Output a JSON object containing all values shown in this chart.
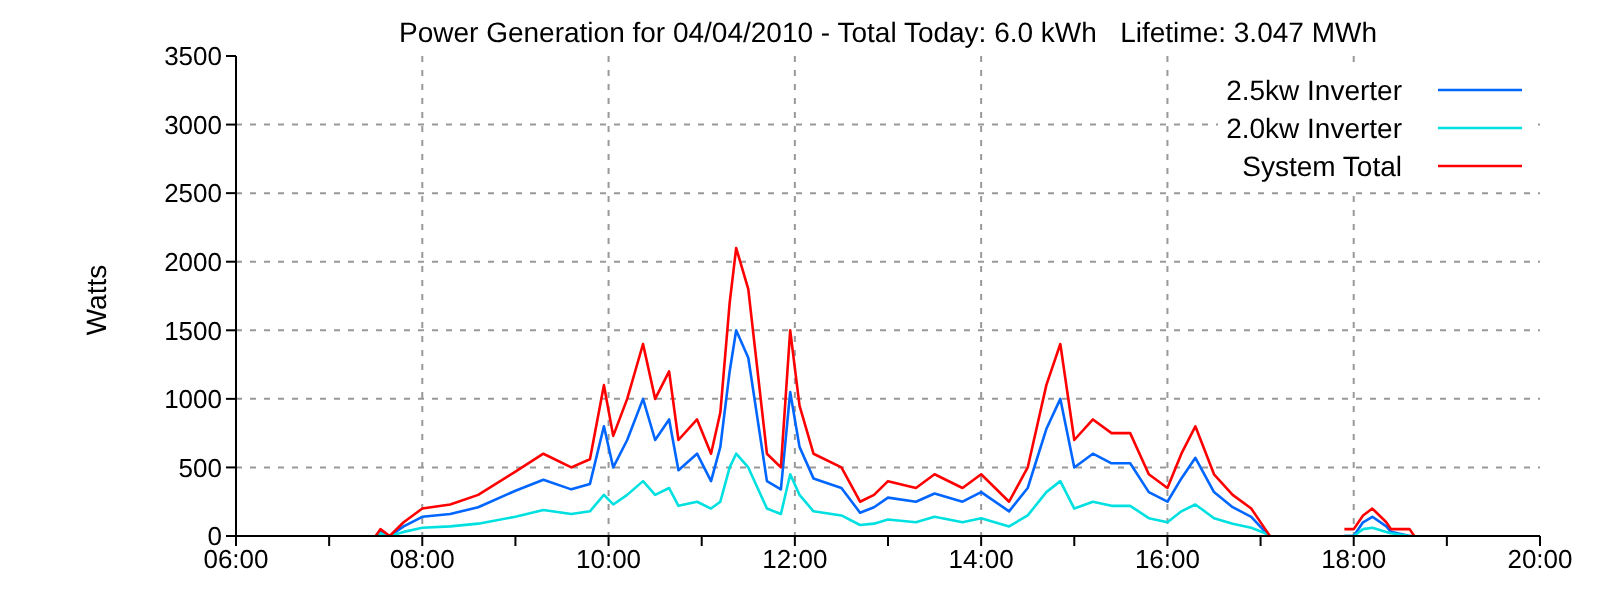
{
  "chart_data": {
    "type": "line",
    "title": "Power Generation for 04/04/2010 - Total Today: 6.0 kWh   Lifetime: 3.047 MWh",
    "ylabel": "Watts",
    "x": [
      7.5,
      7.55,
      7.65,
      7.8,
      8.0,
      8.3,
      8.6,
      9.0,
      9.3,
      9.6,
      9.8,
      9.95,
      10.05,
      10.2,
      10.37,
      10.5,
      10.65,
      10.75,
      10.95,
      11.1,
      11.2,
      11.3,
      11.37,
      11.5,
      11.6,
      11.7,
      11.85,
      11.95,
      12.05,
      12.2,
      12.5,
      12.7,
      12.85,
      13.0,
      13.3,
      13.5,
      13.8,
      14.0,
      14.3,
      14.5,
      14.7,
      14.85,
      15.0,
      15.2,
      15.4,
      15.6,
      15.8,
      16.0,
      16.15,
      16.3,
      16.5,
      16.7,
      16.9,
      17.05,
      17.1,
      17.5,
      17.9,
      18.0,
      18.1,
      18.2,
      18.35,
      18.4,
      18.6,
      18.65
    ],
    "series": [
      {
        "name": "2.5kw Inverter",
        "color": "#0066ff",
        "values": [
          0,
          30,
          0,
          70,
          140,
          160,
          210,
          330,
          410,
          340,
          380,
          800,
          500,
          700,
          1000,
          700,
          850,
          480,
          600,
          400,
          650,
          1200,
          1500,
          1300,
          850,
          400,
          340,
          1050,
          650,
          420,
          350,
          170,
          210,
          280,
          250,
          310,
          250,
          320,
          180,
          350,
          780,
          1000,
          500,
          600,
          530,
          530,
          320,
          250,
          420,
          570,
          320,
          210,
          140,
          30,
          0,
          null,
          0,
          0,
          100,
          140,
          70,
          30,
          0,
          0
        ]
      },
      {
        "name": "2.0kw Inverter",
        "color": "#00e0e0",
        "values": [
          0,
          20,
          0,
          30,
          60,
          70,
          90,
          140,
          190,
          160,
          180,
          300,
          230,
          300,
          400,
          300,
          350,
          220,
          250,
          200,
          250,
          500,
          600,
          500,
          350,
          200,
          160,
          450,
          300,
          180,
          150,
          80,
          90,
          120,
          100,
          140,
          100,
          130,
          70,
          150,
          320,
          400,
          200,
          250,
          220,
          220,
          130,
          100,
          180,
          230,
          130,
          90,
          60,
          20,
          0,
          null,
          0,
          0,
          50,
          60,
          30,
          20,
          0,
          0
        ]
      },
      {
        "name": "System Total",
        "color": "#ff0000",
        "values": [
          0,
          50,
          0,
          100,
          200,
          230,
          300,
          470,
          600,
          500,
          560,
          1100,
          730,
          1000,
          1400,
          1000,
          1200,
          700,
          850,
          600,
          900,
          1700,
          2100,
          1800,
          1200,
          600,
          500,
          1500,
          950,
          600,
          500,
          250,
          300,
          400,
          350,
          450,
          350,
          450,
          250,
          500,
          1100,
          1400,
          700,
          850,
          750,
          750,
          450,
          350,
          600,
          800,
          450,
          300,
          200,
          50,
          0,
          null,
          50,
          50,
          150,
          200,
          100,
          50,
          50,
          0
        ]
      }
    ],
    "xlim": [
      6,
      20
    ],
    "xticks": [
      {
        "value": 6,
        "label": "06:00"
      },
      {
        "value": 7,
        "label": null
      },
      {
        "value": 8,
        "label": "08:00"
      },
      {
        "value": 9,
        "label": null
      },
      {
        "value": 10,
        "label": "10:00"
      },
      {
        "value": 11,
        "label": null
      },
      {
        "value": 12,
        "label": "12:00"
      },
      {
        "value": 13,
        "label": null
      },
      {
        "value": 14,
        "label": "14:00"
      },
      {
        "value": 15,
        "label": null
      },
      {
        "value": 16,
        "label": "16:00"
      },
      {
        "value": 17,
        "label": null
      },
      {
        "value": 18,
        "label": "18:00"
      },
      {
        "value": 19,
        "label": null
      },
      {
        "value": 20,
        "label": "20:00"
      }
    ],
    "ylim": [
      0,
      3500
    ],
    "yticks": [
      0,
      500,
      1000,
      1500,
      2000,
      2500,
      3000,
      3500
    ],
    "grid": true,
    "legend": "top right",
    "marker": "none",
    "line_style": "solid"
  }
}
